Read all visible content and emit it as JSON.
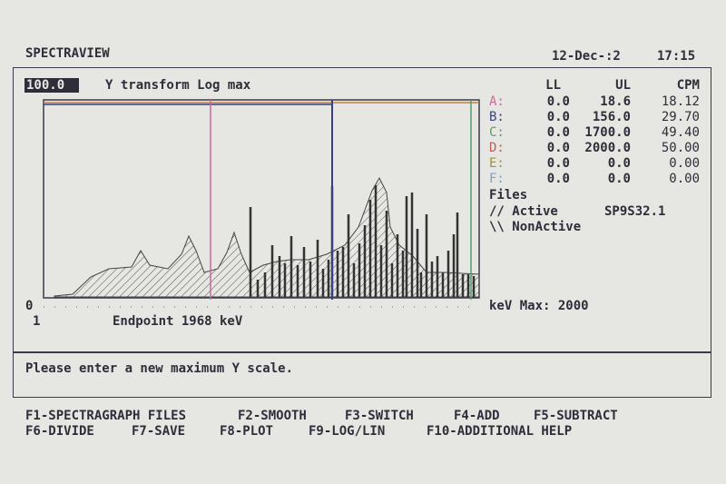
{
  "header": {
    "title": "SPECTRAVIEW",
    "date": "12-Dec-:2",
    "time": "17:15"
  },
  "prompt": {
    "input": "100.0",
    "label": "Y transform Log max"
  },
  "table": {
    "columns": [
      "LL",
      "UL",
      "CPM"
    ],
    "rows": [
      {
        "key": "A:",
        "color": "#c86a9a",
        "cells": [
          "0.0",
          "18.6",
          "18.12"
        ]
      },
      {
        "key": "B:",
        "color": "#3a3f8a",
        "cells": [
          "0.0",
          "156.0",
          "29.70"
        ]
      },
      {
        "key": "C:",
        "color": "#5a9a6a",
        "cells": [
          "0.0",
          "1700.0",
          "49.40"
        ]
      },
      {
        "key": "D:",
        "color": "#c0605a",
        "cells": [
          "0.0",
          "2000.0",
          "50.00"
        ]
      },
      {
        "key": "E:",
        "color": "#a09040",
        "cells": [
          "0.0",
          "0.0",
          "0.00"
        ]
      },
      {
        "key": "F:",
        "color": "#6aa8d8",
        "cells": [
          "0.0",
          "0.0",
          "0.00"
        ]
      }
    ]
  },
  "files": {
    "title": "Files",
    "active": "// Active",
    "active_file": "SP9S32.1",
    "nonactive": "\\\\ NonActive"
  },
  "plot": {
    "y_min_label": "0",
    "x_min_label": "1",
    "endpoint": "Endpoint 1968 keV",
    "kev_max": "keV Max: 2000"
  },
  "message": "Please enter a new maximum Y scale.",
  "function_keys": [
    [
      "F1-SPECTRAGRAPH FILES",
      "F2-SMOOTH",
      "F3-SWITCH",
      "F4-ADD",
      "F5-SUBTRACT"
    ],
    [
      "F6-DIVIDE",
      "F7-SAVE",
      "F8-PLOT",
      "F9-LOG/LIN",
      "F10-ADDITIONAL HELP"
    ]
  ]
}
